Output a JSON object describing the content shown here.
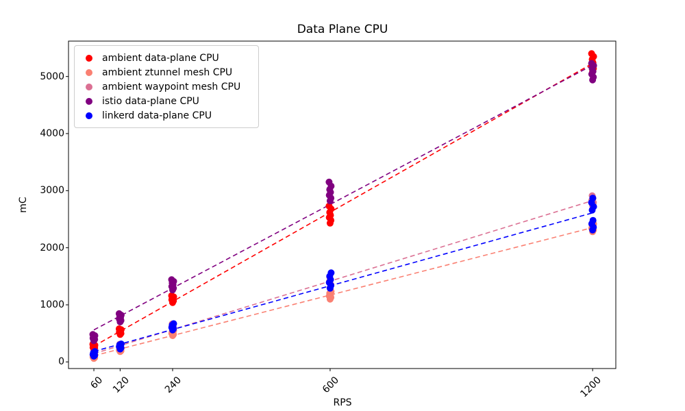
{
  "figure": {
    "title": "Data Plane CPU",
    "xlabel": "RPS",
    "ylabel": "mC"
  },
  "axes": {
    "x_ticks": [
      60,
      120,
      240,
      600,
      1200
    ],
    "y_ticks": [
      0,
      1000,
      2000,
      3000,
      4000,
      5000
    ],
    "xlim": [
      2,
      1253
    ],
    "ylim": [
      -116,
      5620
    ],
    "grid": false,
    "spine_color": "#000000"
  },
  "legend": {
    "position": "upper-left",
    "entries": [
      {
        "label": "ambient data-plane CPU",
        "color": "#ff0000"
      },
      {
        "label": "ambient ztunnel mesh CPU",
        "color": "#fa8072"
      },
      {
        "label": "ambient waypoint mesh CPU",
        "color": "#db7093"
      },
      {
        "label": "istio data-plane CPU",
        "color": "#800080"
      },
      {
        "label": "linkerd data-plane CPU",
        "color": "#0000ff"
      }
    ]
  },
  "chart_data": {
    "type": "scatter",
    "title": "Data Plane CPU",
    "xlabel": "RPS",
    "ylabel": "mC",
    "x_values": [
      60,
      120,
      240,
      600,
      1200
    ],
    "xlim": [
      2,
      1253
    ],
    "ylim": [
      -116,
      5620
    ],
    "legend_position": "upper-left",
    "grid": false,
    "trendline": "linear-fit, dashed, same color as series",
    "series": [
      {
        "name": "ambient data-plane CPU",
        "color": "#ff0000",
        "values": [
          [
            220,
            240,
            255,
            265,
            275,
            290,
            310
          ],
          [
            480,
            500,
            520,
            535,
            550,
            565,
            580
          ],
          [
            1040,
            1070,
            1090,
            1105,
            1120,
            1140,
            1160
          ],
          [
            2430,
            2480,
            2530,
            2570,
            2620,
            2680,
            2730
          ],
          [
            5090,
            5140,
            5190,
            5240,
            5300,
            5350,
            5400
          ]
        ]
      },
      {
        "name": "ambient ztunnel mesh CPU",
        "color": "#fa8072",
        "values": [
          [
            60,
            75,
            85,
            95,
            105,
            120
          ],
          [
            180,
            195,
            205,
            215,
            225,
            240
          ],
          [
            460,
            480,
            500,
            515,
            530,
            550
          ],
          [
            1100,
            1130,
            1155,
            1175,
            1200,
            1230
          ],
          [
            2280,
            2310,
            2340,
            2360,
            2390,
            2420
          ]
        ]
      },
      {
        "name": "ambient waypoint mesh CPU",
        "color": "#db7093",
        "values": [
          [
            100,
            115,
            130,
            140,
            155
          ],
          [
            235,
            255,
            275,
            290,
            310
          ],
          [
            565,
            590,
            615,
            640,
            665
          ],
          [
            1300,
            1350,
            1400,
            1440,
            1490
          ],
          [
            2740,
            2790,
            2830,
            2870,
            2910
          ]
        ]
      },
      {
        "name": "istio data-plane CPU",
        "color": "#800080",
        "values": [
          [
            370,
            395,
            415,
            430,
            445,
            460,
            480
          ],
          [
            700,
            725,
            750,
            775,
            795,
            820,
            845
          ],
          [
            1260,
            1290,
            1320,
            1350,
            1380,
            1410,
            1440
          ],
          [
            2820,
            2870,
            2920,
            2970,
            3020,
            3080,
            3150
          ],
          [
            4940,
            4990,
            5040,
            5090,
            5140,
            5190,
            5230
          ]
        ]
      },
      {
        "name": "linkerd data-plane CPU",
        "color": "#0000ff",
        "values": [
          [
            100,
            115,
            130,
            145,
            160,
            180
          ],
          [
            225,
            245,
            265,
            280,
            300,
            315
          ],
          [
            560,
            580,
            600,
            620,
            645,
            670
          ],
          [
            1290,
            1340,
            1390,
            1440,
            1500,
            1560
          ],
          [
            2310,
            2360,
            2420,
            2480,
            2660,
            2720,
            2790,
            2870
          ]
        ]
      }
    ]
  }
}
